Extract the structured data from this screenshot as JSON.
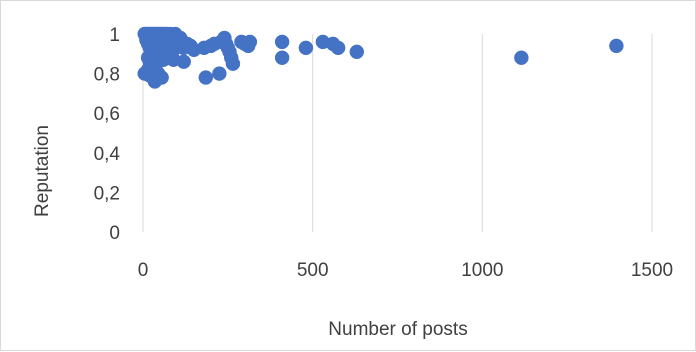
{
  "chart_data": {
    "type": "scatter",
    "title": "",
    "xlabel": "Number of posts",
    "ylabel": "Reputation",
    "xlim": [
      0,
      1500
    ],
    "ylim": [
      0,
      1
    ],
    "x_ticks": [
      0,
      500,
      1000,
      1500
    ],
    "x_tick_labels": [
      "0",
      "500",
      "1000",
      "1500"
    ],
    "y_ticks": [
      0,
      0.2,
      0.4,
      0.6,
      0.8,
      1
    ],
    "y_tick_labels": [
      "0",
      "0,2",
      "0,4",
      "0,6",
      "0,8",
      "1"
    ],
    "grid": {
      "vertical": true,
      "horizontal": false
    },
    "legend": "none",
    "marker_color": "#4472c4",
    "points": [
      [
        5,
        1.0
      ],
      [
        10,
        1.0
      ],
      [
        15,
        1.0
      ],
      [
        20,
        1.0
      ],
      [
        25,
        1.0
      ],
      [
        30,
        1.0
      ],
      [
        35,
        1.0
      ],
      [
        40,
        1.0
      ],
      [
        45,
        1.0
      ],
      [
        50,
        1.0
      ],
      [
        55,
        1.0
      ],
      [
        60,
        1.0
      ],
      [
        65,
        1.0
      ],
      [
        70,
        1.0
      ],
      [
        80,
        1.0
      ],
      [
        95,
        1.0
      ],
      [
        10,
        0.97
      ],
      [
        15,
        0.95
      ],
      [
        20,
        0.93
      ],
      [
        25,
        0.91
      ],
      [
        30,
        0.9
      ],
      [
        35,
        0.92
      ],
      [
        40,
        0.96
      ],
      [
        45,
        0.94
      ],
      [
        50,
        0.97
      ],
      [
        55,
        0.93
      ],
      [
        60,
        0.95
      ],
      [
        65,
        0.91
      ],
      [
        70,
        0.98
      ],
      [
        75,
        0.96
      ],
      [
        85,
        0.97
      ],
      [
        90,
        0.92
      ],
      [
        100,
        0.95
      ],
      [
        110,
        0.98
      ],
      [
        115,
        0.96
      ],
      [
        120,
        0.93
      ],
      [
        130,
        0.95
      ],
      [
        140,
        0.94
      ],
      [
        150,
        0.92
      ],
      [
        15,
        0.88
      ],
      [
        20,
        0.86
      ],
      [
        25,
        0.84
      ],
      [
        30,
        0.87
      ],
      [
        35,
        0.85
      ],
      [
        40,
        0.88
      ],
      [
        45,
        0.86
      ],
      [
        55,
        0.89
      ],
      [
        60,
        0.87
      ],
      [
        80,
        0.88
      ],
      [
        90,
        0.87
      ],
      [
        120,
        0.86
      ],
      [
        5,
        0.8
      ],
      [
        15,
        0.82
      ],
      [
        20,
        0.79
      ],
      [
        30,
        0.78
      ],
      [
        35,
        0.76
      ],
      [
        45,
        0.8
      ],
      [
        55,
        0.78
      ],
      [
        180,
        0.93
      ],
      [
        200,
        0.94
      ],
      [
        210,
        0.95
      ],
      [
        230,
        0.96
      ],
      [
        240,
        0.98
      ],
      [
        245,
        0.95
      ],
      [
        250,
        0.93
      ],
      [
        255,
        0.91
      ],
      [
        260,
        0.88
      ],
      [
        265,
        0.85
      ],
      [
        185,
        0.78
      ],
      [
        225,
        0.8
      ],
      [
        290,
        0.96
      ],
      [
        300,
        0.95
      ],
      [
        310,
        0.94
      ],
      [
        315,
        0.96
      ],
      [
        410,
        0.96
      ],
      [
        410,
        0.88
      ],
      [
        480,
        0.93
      ],
      [
        530,
        0.96
      ],
      [
        560,
        0.95
      ],
      [
        575,
        0.93
      ],
      [
        630,
        0.91
      ],
      [
        1115,
        0.88
      ],
      [
        1395,
        0.94
      ]
    ]
  }
}
